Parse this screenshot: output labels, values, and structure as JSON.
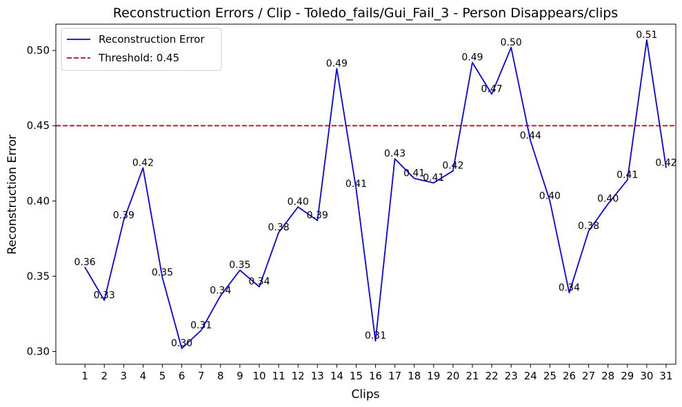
{
  "chart_data": {
    "type": "line",
    "title": "Reconstruction Errors / Clip - Toledo_fails/Gui_Fail_3 - Person Disappears/clips",
    "xlabel": "Clips",
    "ylabel": "Reconstruction Error",
    "x": [
      1,
      2,
      3,
      4,
      5,
      6,
      7,
      8,
      9,
      10,
      11,
      12,
      13,
      14,
      15,
      16,
      17,
      18,
      19,
      20,
      21,
      22,
      23,
      24,
      25,
      26,
      27,
      28,
      29,
      30,
      31
    ],
    "series": [
      {
        "name": "Reconstruction Error",
        "color": "#0000ff",
        "values": [
          0.356,
          0.334,
          0.387,
          0.422,
          0.349,
          0.302,
          0.314,
          0.337,
          0.354,
          0.343,
          0.379,
          0.396,
          0.387,
          0.488,
          0.408,
          0.307,
          0.428,
          0.415,
          0.412,
          0.42,
          0.492,
          0.471,
          0.502,
          0.44,
          0.4,
          0.339,
          0.38,
          0.398,
          0.414,
          0.507,
          0.422
        ],
        "labels": [
          "0.36",
          "0.33",
          "0.39",
          "0.42",
          "0.35",
          "0.30",
          "0.31",
          "0.34",
          "0.35",
          "0.34",
          "0.38",
          "0.40",
          "0.39",
          "0.49",
          "0.41",
          "0.31",
          "0.43",
          "0.41",
          "0.41",
          "0.42",
          "0.49",
          "0.47",
          "0.50",
          "0.44",
          "0.40",
          "0.34",
          "0.38",
          "0.40",
          "0.41",
          "0.51",
          "0.42"
        ]
      }
    ],
    "threshold": {
      "name": "Threshold: 0.45",
      "value": 0.45,
      "color": "#dd0000"
    },
    "ylim": [
      0.2915,
      0.5175
    ],
    "xlim": [
      -0.5,
      31.5
    ],
    "yticks": [
      0.3,
      0.35,
      0.4,
      0.45,
      0.5
    ],
    "ytick_labels": [
      "0.30",
      "0.35",
      "0.40",
      "0.45",
      "0.50"
    ],
    "xtick_labels": [
      "1",
      "2",
      "3",
      "4",
      "5",
      "6",
      "7",
      "8",
      "9",
      "10",
      "11",
      "12",
      "13",
      "14",
      "15",
      "16",
      "17",
      "18",
      "19",
      "20",
      "21",
      "22",
      "23",
      "24",
      "25",
      "26",
      "27",
      "28",
      "29",
      "30",
      "31"
    ],
    "grid": false,
    "legend_position": "top-left"
  }
}
